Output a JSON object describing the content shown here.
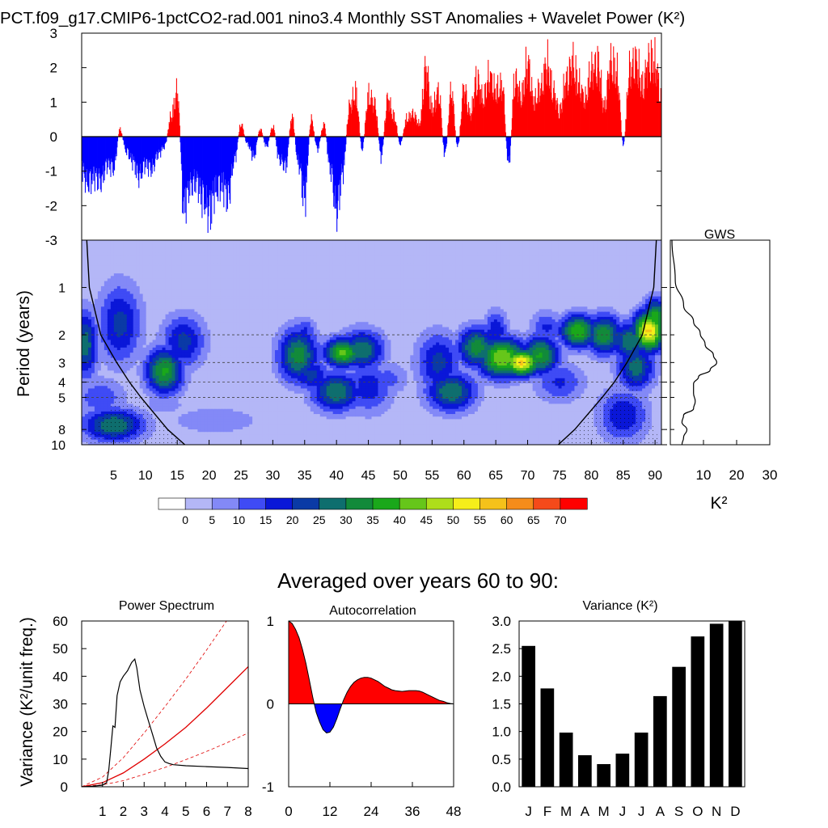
{
  "title": "PCT.f09_g17.CMIP6-1pctCO2-rad.001 nino3.4 Monthly SST Anomalies + Wavelet Power (K²)",
  "colors": {
    "positive": "#ff0000",
    "negative": "#0000ff",
    "line": "#000000",
    "red_line": "#e00000",
    "bars": "#000000"
  },
  "chart_data": [
    {
      "id": "sst_anomaly",
      "type": "area",
      "ylim": [
        -3,
        3
      ],
      "yticks": [
        -3,
        -2,
        -1,
        0,
        1,
        2,
        3
      ],
      "xlim": [
        0,
        91
      ],
      "envelope": [
        [
          0,
          -1.4
        ],
        [
          1,
          -1.9
        ],
        [
          2,
          -1.6
        ],
        [
          3,
          -1.8
        ],
        [
          4,
          -1.1
        ],
        [
          5,
          -1.3
        ],
        [
          6,
          0.3
        ],
        [
          7,
          -0.6
        ],
        [
          8,
          -1.0
        ],
        [
          9,
          -1.6
        ],
        [
          10,
          -1.1
        ],
        [
          11,
          -1.3
        ],
        [
          12,
          -0.7
        ],
        [
          13,
          -0.4
        ],
        [
          14,
          0.8
        ],
        [
          15,
          1.8
        ],
        [
          16,
          -2.8
        ],
        [
          17,
          -2.0
        ],
        [
          18,
          -1.8
        ],
        [
          19,
          -2.5
        ],
        [
          20,
          -3.0
        ],
        [
          21,
          -2.2
        ],
        [
          22,
          -2.0
        ],
        [
          23,
          -2.4
        ],
        [
          24,
          -0.9
        ],
        [
          25,
          0.5
        ],
        [
          26,
          -0.3
        ],
        [
          27,
          -0.8
        ],
        [
          28,
          0.3
        ],
        [
          29,
          -0.4
        ],
        [
          30,
          0.4
        ],
        [
          31,
          -0.9
        ],
        [
          32,
          -1.2
        ],
        [
          33,
          0.8
        ],
        [
          34,
          -1.1
        ],
        [
          35,
          -2.5
        ],
        [
          36,
          0.7
        ],
        [
          37,
          -0.5
        ],
        [
          38,
          0.5
        ],
        [
          39,
          -1.3
        ],
        [
          40,
          -3.0
        ],
        [
          41,
          -1.4
        ],
        [
          42,
          1.2
        ],
        [
          43,
          1.7
        ],
        [
          44,
          -0.5
        ],
        [
          45,
          1.6
        ],
        [
          46,
          1.3
        ],
        [
          47,
          -0.8
        ],
        [
          48,
          1.5
        ],
        [
          49,
          0.8
        ],
        [
          50,
          -0.3
        ],
        [
          51,
          0.7
        ],
        [
          52,
          0.9
        ],
        [
          53,
          0.5
        ],
        [
          54,
          2.7
        ],
        [
          55,
          1.1
        ],
        [
          56,
          1.8
        ],
        [
          57,
          -0.7
        ],
        [
          58,
          1.8
        ],
        [
          59,
          -0.4
        ],
        [
          60,
          1.9
        ],
        [
          61,
          0.9
        ],
        [
          62,
          2.3
        ],
        [
          63,
          1.5
        ],
        [
          64,
          2.4
        ],
        [
          65,
          1.8
        ],
        [
          66,
          2.0
        ],
        [
          67,
          -1.1
        ],
        [
          68,
          2.3
        ],
        [
          69,
          1.6
        ],
        [
          70,
          2.9
        ],
        [
          71,
          1.4
        ],
        [
          72,
          1.9
        ],
        [
          73,
          2.9
        ],
        [
          74,
          1.8
        ],
        [
          75,
          1.0
        ],
        [
          76,
          2.2
        ],
        [
          77,
          2.9
        ],
        [
          78,
          2.1
        ],
        [
          79,
          1.5
        ],
        [
          80,
          2.6
        ],
        [
          81,
          2.9
        ],
        [
          82,
          1.2
        ],
        [
          83,
          2.9
        ],
        [
          84,
          2.5
        ],
        [
          85,
          -0.3
        ],
        [
          86,
          2.6
        ],
        [
          87,
          3.0
        ],
        [
          88,
          2.0
        ],
        [
          89,
          3.0
        ],
        [
          90,
          2.9
        ],
        [
          91,
          1.5
        ]
      ]
    },
    {
      "id": "wavelet_power",
      "type": "heatmap",
      "xticks": [
        5,
        10,
        15,
        20,
        25,
        30,
        35,
        40,
        45,
        50,
        55,
        60,
        65,
        70,
        75,
        80,
        85,
        90
      ],
      "xlim": [
        0,
        91
      ],
      "ylabel": "Period (years)",
      "yticks": [
        1,
        2,
        3,
        4,
        5,
        8,
        10
      ],
      "ylim": [
        0.5,
        10
      ],
      "log_y": true,
      "reference_periods": [
        2,
        3,
        4,
        5
      ],
      "levels": [
        0,
        5,
        10,
        15,
        20,
        25,
        30,
        35,
        40,
        45,
        50,
        55,
        60,
        65,
        70
      ],
      "level_labels": [
        "0",
        "5",
        "10",
        "15",
        "20",
        "25",
        "30",
        "35",
        "40",
        "45",
        "50",
        "55",
        "60",
        "65",
        "70"
      ],
      "palette": [
        "#ffffff",
        "#b4b7f7",
        "#8389f7",
        "#3f4bf5",
        "#0a17d8",
        "#0a3aa6",
        "#0e6e6e",
        "#128a3a",
        "#1aa81a",
        "#66c61a",
        "#aede1a",
        "#f5ee1a",
        "#f5c21a",
        "#f58c1a",
        "#f54a1a",
        "#ff0000"
      ],
      "blobs": [
        [
          0.6,
          2.3,
          2.0,
          0.5,
          28
        ],
        [
          6,
          1.7,
          3.5,
          0.6,
          22
        ],
        [
          13,
          3.4,
          3.0,
          0.35,
          36
        ],
        [
          16,
          2.2,
          3.5,
          0.4,
          22
        ],
        [
          5,
          7.5,
          5.0,
          0.25,
          30
        ],
        [
          3,
          5.0,
          4.0,
          0.3,
          14
        ],
        [
          21,
          7.0,
          10.0,
          0.3,
          7
        ],
        [
          34,
          2.7,
          3.2,
          0.4,
          33
        ],
        [
          36,
          3.6,
          3.0,
          0.25,
          22
        ],
        [
          41,
          2.6,
          3.0,
          0.22,
          42
        ],
        [
          44,
          2.5,
          3.5,
          0.3,
          30
        ],
        [
          35,
          1.9,
          2.0,
          0.2,
          16
        ],
        [
          40,
          4.6,
          4.0,
          0.3,
          30
        ],
        [
          45,
          4.3,
          4.0,
          0.4,
          18
        ],
        [
          48,
          3.8,
          3.5,
          0.25,
          12
        ],
        [
          56,
          3.0,
          3.5,
          0.45,
          22
        ],
        [
          58,
          4.6,
          4.0,
          0.3,
          30
        ],
        [
          62,
          2.4,
          3.0,
          0.3,
          34
        ],
        [
          66,
          2.8,
          4.0,
          0.3,
          45
        ],
        [
          69,
          3.0,
          3.0,
          0.2,
          56
        ],
        [
          72,
          2.7,
          3.0,
          0.3,
          36
        ],
        [
          65,
          1.9,
          2.0,
          0.3,
          20
        ],
        [
          73,
          1.8,
          2.5,
          0.25,
          16
        ],
        [
          78,
          1.9,
          3.0,
          0.25,
          40
        ],
        [
          82,
          2.0,
          3.0,
          0.3,
          34
        ],
        [
          86,
          2.2,
          3.0,
          0.3,
          30
        ],
        [
          89,
          1.9,
          2.5,
          0.3,
          56
        ],
        [
          90,
          1.6,
          2.0,
          0.3,
          40
        ],
        [
          87,
          3.2,
          3.0,
          0.35,
          28
        ],
        [
          75,
          4.0,
          4.0,
          0.3,
          16
        ],
        [
          85,
          6.5,
          4.0,
          0.4,
          20
        ],
        [
          66,
          4.3,
          3.0,
          0.2,
          5
        ],
        [
          38,
          4.1,
          5.0,
          0.2,
          5
        ],
        [
          13,
          5.6,
          6.0,
          0.25,
          6
        ]
      ]
    },
    {
      "id": "gws",
      "type": "line",
      "title": "GWS",
      "xlabel": "K²",
      "xticks": [
        10,
        20,
        30
      ],
      "xlim": [
        0,
        30
      ],
      "points": [
        [
          0.5,
          0.5
        ],
        [
          1.5,
          0.9
        ],
        [
          4,
          1.3
        ],
        [
          7,
          1.65
        ],
        [
          9,
          1.95
        ],
        [
          10.5,
          2.3
        ],
        [
          13,
          2.7
        ],
        [
          14,
          3.0
        ],
        [
          12,
          3.35
        ],
        [
          8.5,
          3.7
        ],
        [
          7,
          4.1
        ],
        [
          7,
          4.7
        ],
        [
          7.5,
          5.3
        ],
        [
          7,
          5.9
        ],
        [
          4,
          6.5
        ],
        [
          3.5,
          7.2
        ],
        [
          5,
          8.0
        ],
        [
          4,
          9.0
        ],
        [
          3.5,
          10.0
        ]
      ]
    },
    {
      "id": "averaged_title",
      "type": "table",
      "title": "Averaged over years 60 to 90:"
    },
    {
      "id": "power_spectrum",
      "type": "line",
      "title": "Power Spectrum",
      "ylabel": "Variance (K²/unit freq.)",
      "xlim": [
        0,
        8
      ],
      "ylim": [
        0,
        60
      ],
      "xticks": [
        1,
        2,
        3,
        4,
        5,
        6,
        7,
        8
      ],
      "yticks": [
        0,
        10,
        20,
        30,
        40,
        50,
        60
      ],
      "spectrum": [
        [
          0,
          0
        ],
        [
          0.5,
          0.2
        ],
        [
          1.0,
          0.6
        ],
        [
          1.2,
          1.5
        ],
        [
          1.3,
          6
        ],
        [
          1.4,
          14
        ],
        [
          1.5,
          22
        ],
        [
          1.6,
          21.5
        ],
        [
          1.7,
          33
        ],
        [
          1.85,
          38
        ],
        [
          2.0,
          40
        ],
        [
          2.2,
          42
        ],
        [
          2.4,
          45
        ],
        [
          2.55,
          46.2
        ],
        [
          2.65,
          43
        ],
        [
          2.8,
          35
        ],
        [
          3.0,
          29
        ],
        [
          3.2,
          24
        ],
        [
          3.4,
          19
        ],
        [
          3.6,
          14
        ],
        [
          3.8,
          11
        ],
        [
          4.0,
          9
        ],
        [
          4.2,
          8.4
        ],
        [
          4.4,
          8
        ],
        [
          5.0,
          7.6
        ],
        [
          6.0,
          7.3
        ],
        [
          7.0,
          7.0
        ],
        [
          8.0,
          6.6
        ]
      ],
      "red_noise": [
        [
          0,
          0
        ],
        [
          1,
          1.5
        ],
        [
          2,
          5
        ],
        [
          3,
          10
        ],
        [
          4,
          15.5
        ],
        [
          5,
          21.5
        ],
        [
          6,
          28.5
        ],
        [
          7,
          36
        ],
        [
          8,
          43.5
        ]
      ],
      "red_noise_upper": [
        [
          0,
          0
        ],
        [
          1,
          3.5
        ],
        [
          2,
          10.5
        ],
        [
          3,
          19.5
        ],
        [
          4,
          29
        ],
        [
          5,
          39
        ],
        [
          6,
          49.5
        ],
        [
          7,
          60.5
        ],
        [
          8,
          72
        ]
      ],
      "red_noise_lower": [
        [
          0,
          0
        ],
        [
          1,
          0.7
        ],
        [
          2,
          2.2
        ],
        [
          3,
          4.5
        ],
        [
          4,
          7
        ],
        [
          5,
          9.8
        ],
        [
          6,
          12.8
        ],
        [
          7,
          16
        ],
        [
          8,
          19.5
        ]
      ]
    },
    {
      "id": "autocorrelation",
      "type": "area",
      "title": "Autocorrelation",
      "xlim": [
        0,
        48
      ],
      "ylim": [
        -1,
        1
      ],
      "xticks": [
        0,
        12,
        24,
        36,
        48
      ],
      "yticks": [
        -1,
        0,
        1
      ],
      "values": [
        [
          0,
          1.0
        ],
        [
          1,
          0.97
        ],
        [
          2,
          0.9
        ],
        [
          3,
          0.8
        ],
        [
          4,
          0.66
        ],
        [
          5,
          0.49
        ],
        [
          6,
          0.29
        ],
        [
          7,
          0.08
        ],
        [
          8,
          -0.1
        ],
        [
          9,
          -0.22
        ],
        [
          10,
          -0.31
        ],
        [
          11,
          -0.35
        ],
        [
          12,
          -0.34
        ],
        [
          13,
          -0.28
        ],
        [
          14,
          -0.18
        ],
        [
          15,
          -0.06
        ],
        [
          16,
          0.05
        ],
        [
          17,
          0.14
        ],
        [
          18,
          0.21
        ],
        [
          19,
          0.26
        ],
        [
          20,
          0.29
        ],
        [
          21,
          0.31
        ],
        [
          22,
          0.32
        ],
        [
          23,
          0.32
        ],
        [
          24,
          0.31
        ],
        [
          25,
          0.29
        ],
        [
          26,
          0.27
        ],
        [
          27,
          0.24
        ],
        [
          28,
          0.21
        ],
        [
          29,
          0.19
        ],
        [
          30,
          0.17
        ],
        [
          31,
          0.16
        ],
        [
          32,
          0.155
        ],
        [
          33,
          0.15
        ],
        [
          34,
          0.155
        ],
        [
          35,
          0.16
        ],
        [
          36,
          0.16
        ],
        [
          37,
          0.16
        ],
        [
          38,
          0.155
        ],
        [
          39,
          0.14
        ],
        [
          40,
          0.12
        ],
        [
          41,
          0.1
        ],
        [
          42,
          0.08
        ],
        [
          43,
          0.06
        ],
        [
          44,
          0.04
        ],
        [
          45,
          0.03
        ],
        [
          46,
          0.015
        ],
        [
          47,
          0.005
        ],
        [
          48,
          0.0
        ]
      ]
    },
    {
      "id": "variance",
      "type": "bar",
      "title": "Variance (K²)",
      "categories": [
        "J",
        "F",
        "M",
        "A",
        "M",
        "J",
        "J",
        "A",
        "S",
        "O",
        "N",
        "D"
      ],
      "values": [
        2.55,
        1.78,
        0.98,
        0.57,
        0.41,
        0.6,
        0.98,
        1.64,
        2.17,
        2.72,
        2.95,
        3.0
      ],
      "ylim": [
        0,
        3.0
      ],
      "yticks": [
        "0.0",
        "0.5",
        "1.0",
        "1.5",
        "2.0",
        "2.5",
        "3.0"
      ]
    }
  ]
}
